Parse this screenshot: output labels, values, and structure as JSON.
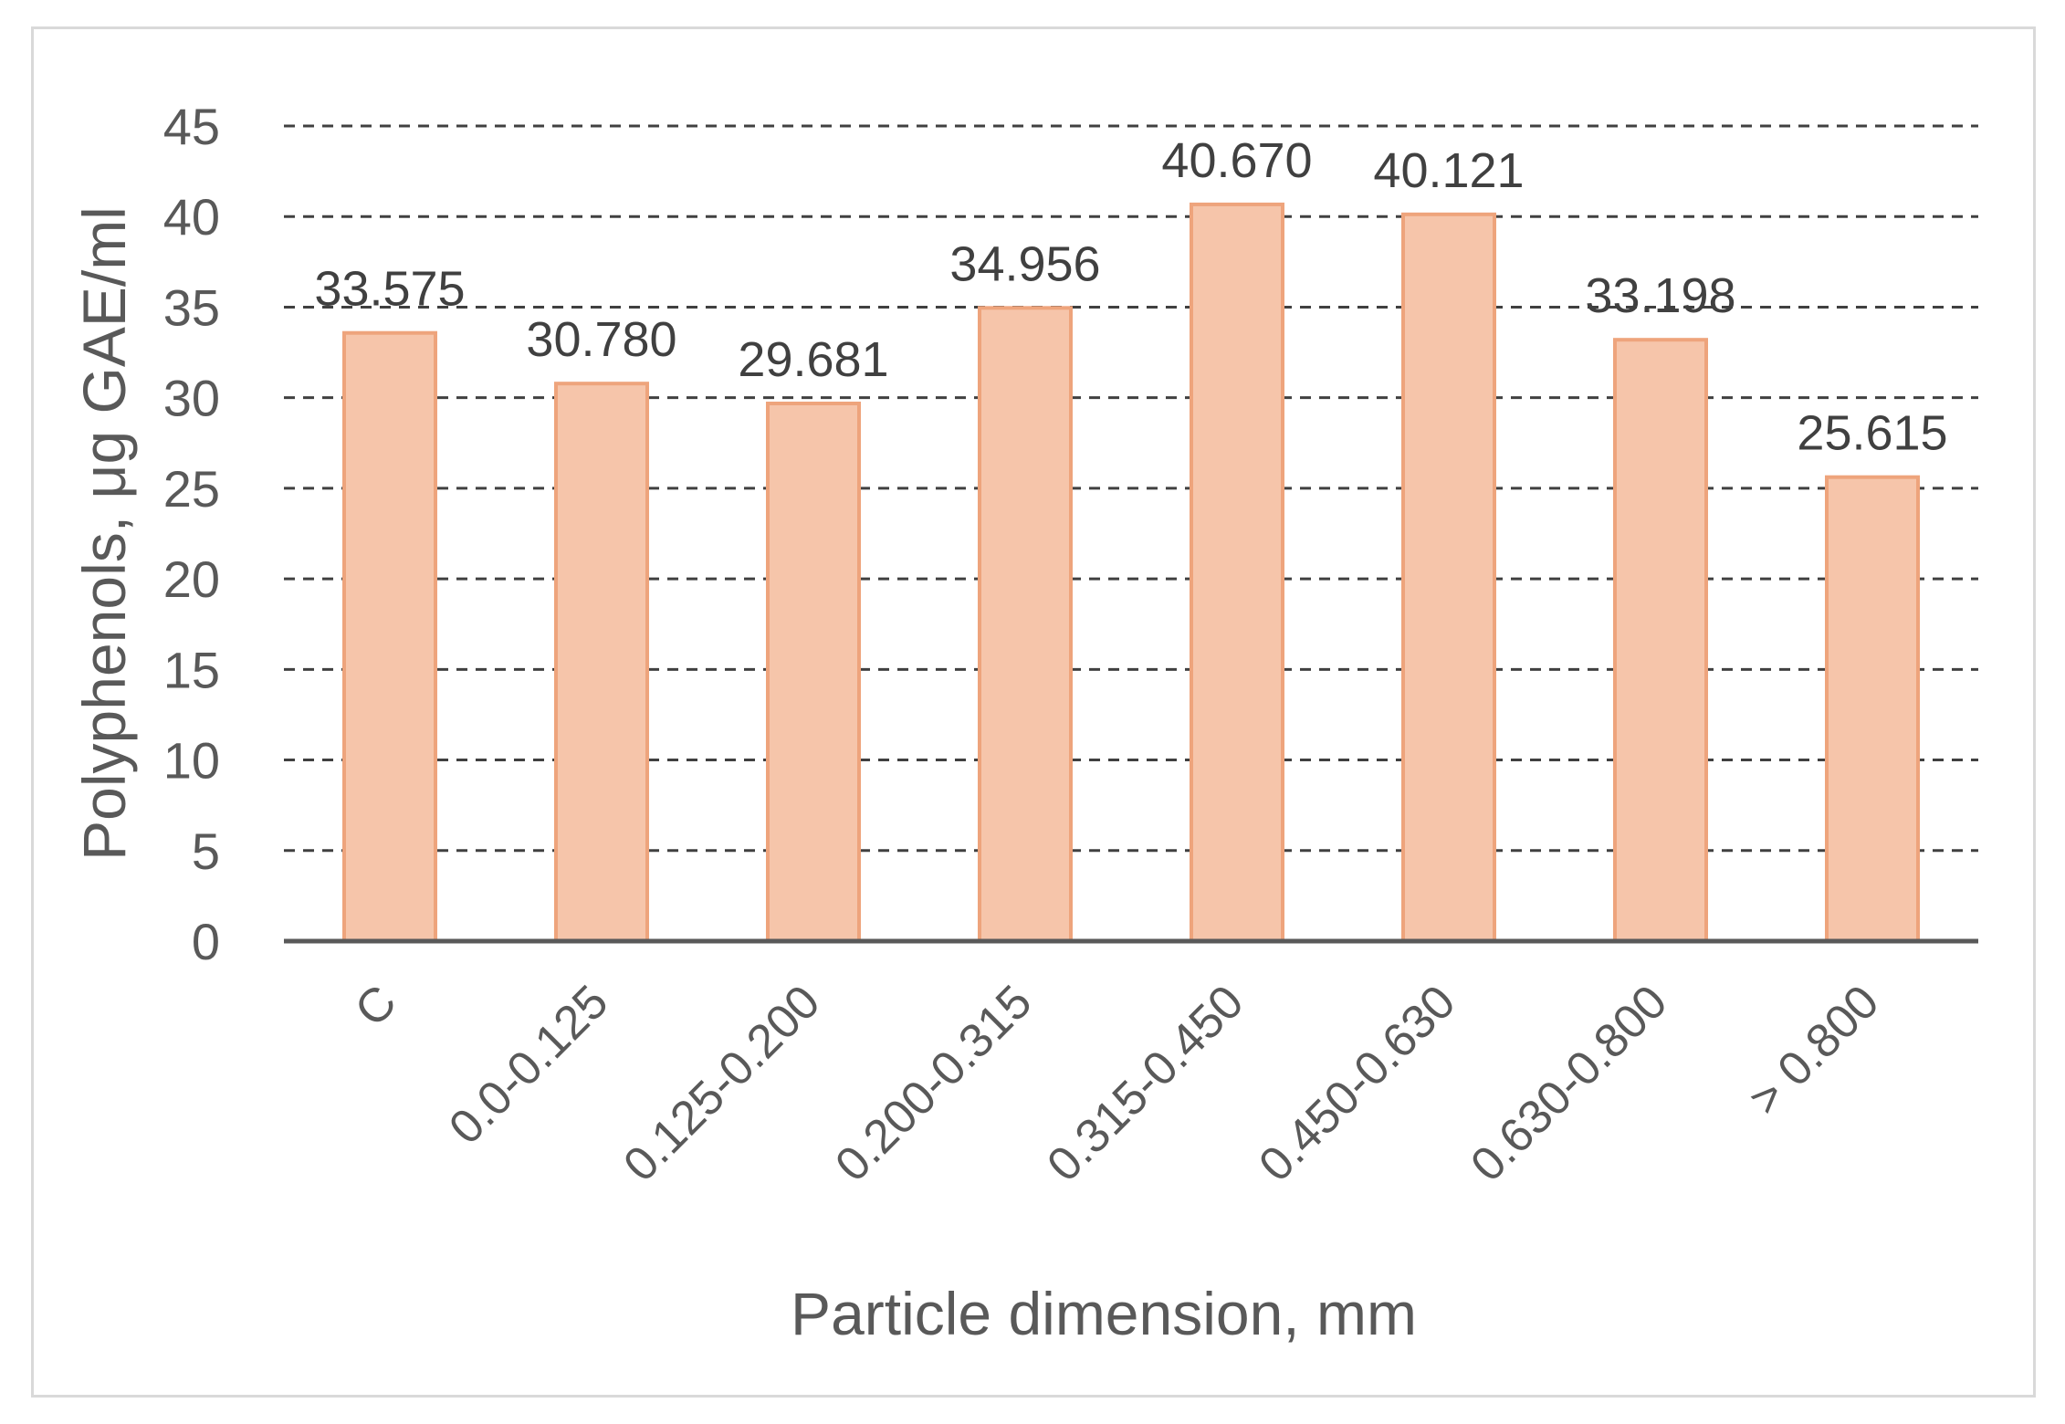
{
  "chart_data": {
    "type": "bar",
    "title": "",
    "xlabel": "Particle dimension, mm",
    "ylabel": "Polyphenols, μg GAE/ml",
    "categories": [
      "C",
      "0.0-0.125",
      "0.125-0.200",
      "0.200-0.315",
      "0.315-0.450",
      "0.450-0.630",
      "0.630-0.800",
      "> 0.800"
    ],
    "values": [
      33.575,
      30.78,
      29.681,
      34.956,
      40.67,
      40.121,
      33.198,
      25.615
    ],
    "data_labels": [
      "33.575",
      "30.780",
      "29.681",
      "34.956",
      "40.670",
      "40.121",
      "33.198",
      "25.615"
    ],
    "ylim": [
      0,
      45
    ],
    "yticks": [
      0,
      5,
      10,
      15,
      20,
      25,
      30,
      35,
      40,
      45
    ],
    "grid": "horizontal dashed",
    "legend": "none",
    "colors": {
      "bar_fill": "#f6c5aa",
      "bar_edge": "#eea47c",
      "gridline": "#404040",
      "axis_line": "#595959",
      "text": "#595959",
      "data_label_text": "#404040",
      "frame_border": "#d9d9d9"
    }
  }
}
